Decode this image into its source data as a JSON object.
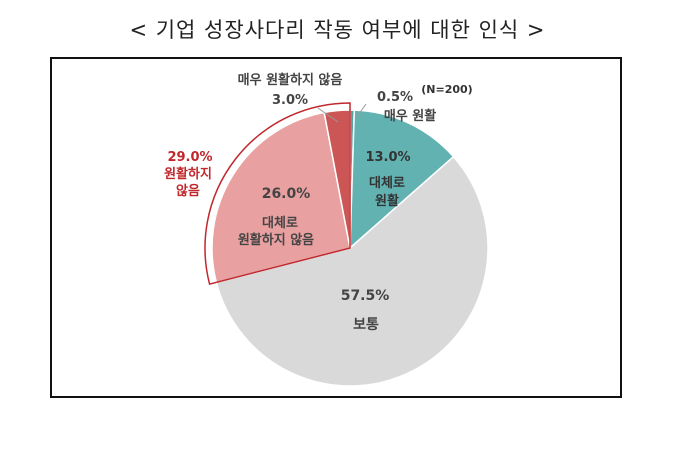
{
  "title": "< 기업 성장사다리 작동 여부에 대한 인식 >",
  "note": "(N=200)",
  "chart_data": {
    "type": "pie",
    "title": "< 기업 성장사다리 작동 여부에 대한 인식 >",
    "unit": "%",
    "slices": [
      {
        "label": "매우 원활",
        "value": 0.5,
        "value_label": "0.5%",
        "color": "#55a3a3"
      },
      {
        "label": "대체로 원활",
        "value": 13.0,
        "value_label": "13.0%",
        "color": "#62b2b2"
      },
      {
        "label": "보통",
        "value": 57.5,
        "value_label": "57.5%",
        "color": "#d9d9d9"
      },
      {
        "label": "대체로 원활하지 않음",
        "value": 26.0,
        "value_label": "26.0%",
        "color": "#e8a0a0"
      },
      {
        "label": "매우 원활하지 않음",
        "value": 3.0,
        "value_label": "3.0%",
        "color": "#cc5555"
      }
    ],
    "group_annotation": {
      "value_label": "29.0%",
      "label_line1": "원활하지",
      "label_line2": "않음",
      "color": "#c0282d"
    },
    "slice_texts": {
      "very_smooth_label": "매우 원활",
      "mostly_smooth_line1": "대체로",
      "mostly_smooth_line2": "원활",
      "normal_label": "보통",
      "mostly_not_line1": "대체로",
      "mostly_not_line2": "원활하지 않음",
      "very_not_label": "매우 원활하지 않음"
    }
  }
}
